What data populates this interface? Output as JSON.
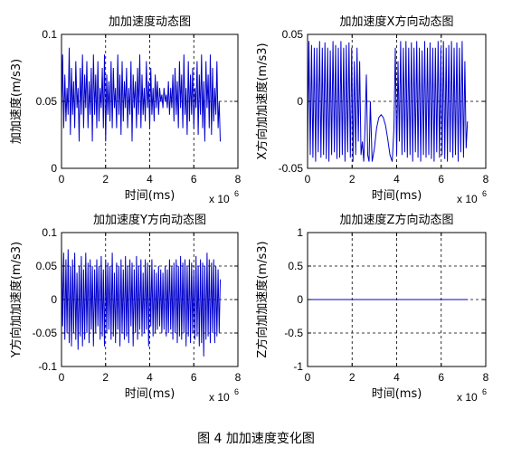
{
  "figure_caption": "图 4  加加速度变化图",
  "chart_data": [
    {
      "id": "total",
      "type": "line",
      "title": "加加速度动态图",
      "xlabel": "时间(ms)",
      "ylabel": "加加速度(m/s3)",
      "x_exponent_base": "x 10",
      "x_exponent": "6",
      "xlim": [
        0,
        8
      ],
      "ylim": [
        0,
        0.1
      ],
      "xticks": [
        "0",
        "2",
        "4",
        "6",
        "8"
      ],
      "yticks": [
        "0",
        "0.05",
        "0.1"
      ],
      "grid": true,
      "line_color": "#0000cc",
      "series": [
        {
          "x": [
            0.0,
            0.05,
            0.1,
            0.15,
            0.2,
            0.25,
            0.3,
            0.35,
            0.4,
            0.45,
            0.5,
            0.55,
            0.6,
            0.65,
            0.7,
            0.75,
            0.8,
            0.85,
            0.9,
            0.95,
            1.0,
            1.05,
            1.1,
            1.15,
            1.2,
            1.25,
            1.3,
            1.35,
            1.4,
            1.45,
            1.5,
            1.55,
            1.6,
            1.65,
            1.7,
            1.75,
            1.8,
            1.85,
            1.9,
            1.95,
            2.0,
            2.05,
            2.1,
            2.15,
            2.2,
            2.25,
            2.3,
            2.35,
            2.4,
            2.45,
            2.5,
            2.55,
            2.6,
            2.65,
            2.7,
            2.75,
            2.8,
            2.85,
            2.9,
            2.95,
            3.0,
            3.05,
            3.1,
            3.15,
            3.2,
            3.25,
            3.3,
            3.35,
            3.4,
            3.45,
            3.5,
            3.55,
            3.6,
            3.65,
            3.7,
            3.75,
            3.8,
            3.85,
            3.9,
            3.95,
            4.0,
            4.05,
            4.1,
            4.15,
            4.2,
            4.25,
            4.3,
            4.35,
            4.4,
            4.45,
            4.5,
            4.55,
            4.6,
            4.65,
            4.7,
            4.75,
            4.8,
            4.85,
            4.9,
            4.95,
            5.0,
            5.05,
            5.1,
            5.15,
            5.2,
            5.25,
            5.3,
            5.35,
            5.4,
            5.45,
            5.5,
            5.55,
            5.6,
            5.65,
            5.7,
            5.75,
            5.8,
            5.85,
            5.9,
            5.95,
            6.0,
            6.05,
            6.1,
            6.15,
            6.2,
            6.25,
            6.3,
            6.35,
            6.4,
            6.45,
            6.5,
            6.55,
            6.6,
            6.65,
            6.7,
            6.75,
            6.8,
            6.85,
            6.9,
            6.95,
            7.0,
            7.05,
            7.1,
            7.15,
            7.2
          ],
          "y": [
            0.04,
            0.085,
            0.03,
            0.07,
            0.035,
            0.06,
            0.04,
            0.09,
            0.025,
            0.075,
            0.04,
            0.065,
            0.03,
            0.08,
            0.045,
            0.06,
            0.02,
            0.075,
            0.04,
            0.085,
            0.03,
            0.07,
            0.045,
            0.08,
            0.03,
            0.065,
            0.04,
            0.075,
            0.02,
            0.085,
            0.04,
            0.07,
            0.03,
            0.08,
            0.035,
            0.06,
            0.045,
            0.075,
            0.03,
            0.085,
            0.02,
            0.07,
            0.04,
            0.065,
            0.035,
            0.08,
            0.03,
            0.075,
            0.045,
            0.06,
            0.03,
            0.085,
            0.04,
            0.07,
            0.025,
            0.08,
            0.035,
            0.065,
            0.045,
            0.075,
            0.03,
            0.06,
            0.04,
            0.08,
            0.02,
            0.07,
            0.045,
            0.065,
            0.03,
            0.075,
            0.04,
            0.085,
            0.03,
            0.07,
            0.04,
            0.06,
            0.035,
            0.08,
            0.045,
            0.065,
            0.03,
            0.075,
            0.04,
            0.06,
            0.035,
            0.07,
            0.045,
            0.065,
            0.04,
            0.06,
            0.05,
            0.055,
            0.045,
            0.06,
            0.05,
            0.055,
            0.045,
            0.065,
            0.04,
            0.06,
            0.045,
            0.07,
            0.035,
            0.075,
            0.04,
            0.065,
            0.03,
            0.08,
            0.045,
            0.07,
            0.03,
            0.085,
            0.04,
            0.06,
            0.025,
            0.08,
            0.035,
            0.07,
            0.04,
            0.075,
            0.03,
            0.06,
            0.045,
            0.08,
            0.025,
            0.07,
            0.04,
            0.085,
            0.03,
            0.065,
            0.02,
            0.08,
            0.045,
            0.07,
            0.03,
            0.085,
            0.025,
            0.075,
            0.035,
            0.06,
            0.04,
            0.08,
            0.03,
            0.05,
            0.02
          ]
        }
      ]
    },
    {
      "id": "x",
      "type": "line",
      "title": "加加速度X方向动态图",
      "xlabel": "时间(ms)",
      "ylabel": "X方向加加速度(m/s3)",
      "x_exponent_base": "x 10",
      "x_exponent": "6",
      "xlim": [
        0,
        8
      ],
      "ylim": [
        -0.05,
        0.05
      ],
      "xticks": [
        "0",
        "2",
        "4",
        "6",
        "8"
      ],
      "yticks": [
        "-0.05",
        "0",
        "0.05"
      ],
      "grid": true,
      "line_color": "#0000cc",
      "series": [
        {
          "x": [
            0.0,
            0.06,
            0.12,
            0.18,
            0.24,
            0.3,
            0.36,
            0.42,
            0.48,
            0.54,
            0.6,
            0.66,
            0.72,
            0.78,
            0.84,
            0.9,
            0.96,
            1.02,
            1.08,
            1.14,
            1.2,
            1.26,
            1.32,
            1.38,
            1.44,
            1.5,
            1.56,
            1.62,
            1.68,
            1.74,
            1.8,
            1.86,
            1.92,
            1.98,
            2.04,
            2.1,
            2.16,
            2.22,
            2.28,
            2.34,
            2.4,
            2.46,
            2.52,
            2.58,
            2.64,
            2.7,
            2.76,
            2.82,
            2.9,
            3.0,
            3.1,
            3.2,
            3.3,
            3.4,
            3.5,
            3.6,
            3.7,
            3.8,
            3.88,
            3.94,
            4.0,
            4.06,
            4.12,
            4.18,
            4.24,
            4.3,
            4.36,
            4.42,
            4.48,
            4.54,
            4.6,
            4.66,
            4.72,
            4.78,
            4.84,
            4.9,
            4.96,
            5.02,
            5.08,
            5.14,
            5.2,
            5.26,
            5.32,
            5.38,
            5.44,
            5.5,
            5.56,
            5.62,
            5.68,
            5.74,
            5.8,
            5.86,
            5.92,
            5.98,
            6.04,
            6.1,
            6.16,
            6.22,
            6.28,
            6.34,
            6.4,
            6.46,
            6.52,
            6.58,
            6.64,
            6.7,
            6.76,
            6.82,
            6.88,
            6.94,
            7.0,
            7.06,
            7.12,
            7.18
          ],
          "y": [
            -0.04,
            0.045,
            -0.04,
            0.042,
            -0.042,
            0.04,
            -0.045,
            0.04,
            -0.038,
            0.045,
            -0.042,
            0.04,
            -0.04,
            0.044,
            -0.043,
            0.04,
            -0.045,
            0.038,
            -0.04,
            0.045,
            -0.038,
            0.042,
            -0.043,
            0.04,
            -0.042,
            0.045,
            -0.04,
            0.04,
            -0.045,
            0.042,
            -0.038,
            0.044,
            -0.042,
            0.04,
            -0.045,
            0.03,
            -0.04,
            0.04,
            -0.03,
            0.03,
            -0.04,
            -0.03,
            -0.045,
            -0.02,
            0.02,
            -0.04,
            -0.045,
            0.0,
            -0.045,
            -0.035,
            -0.02,
            -0.012,
            -0.01,
            -0.012,
            -0.018,
            -0.028,
            -0.04,
            -0.045,
            -0.02,
            0.04,
            -0.04,
            0.03,
            -0.03,
            0.045,
            -0.04,
            0.04,
            -0.038,
            0.045,
            -0.042,
            0.04,
            -0.04,
            0.044,
            -0.045,
            0.04,
            -0.038,
            0.045,
            -0.042,
            0.04,
            -0.045,
            0.038,
            -0.04,
            0.045,
            -0.042,
            0.04,
            -0.04,
            0.044,
            -0.043,
            0.04,
            -0.045,
            0.04,
            -0.038,
            0.045,
            -0.042,
            0.04,
            -0.04,
            0.045,
            -0.043,
            0.04,
            -0.045,
            0.042,
            -0.038,
            0.045,
            -0.042,
            0.04,
            -0.04,
            0.044,
            -0.045,
            0.04,
            -0.038,
            0.045,
            -0.042,
            0.03,
            -0.035,
            -0.015
          ]
        }
      ]
    },
    {
      "id": "y",
      "type": "line",
      "title": "加加速度Y方向动态图",
      "xlabel": "时间(ms)",
      "ylabel": "Y方向加加速度(m/s3)",
      "x_exponent_base": "x 10",
      "x_exponent": "6",
      "xlim": [
        0,
        8
      ],
      "ylim": [
        -0.1,
        0.1
      ],
      "xticks": [
        "0",
        "2",
        "4",
        "6",
        "8"
      ],
      "yticks": [
        "-0.1",
        "-0.05",
        "0",
        "0.05",
        "0.1"
      ],
      "grid": true,
      "line_color": "#0000cc",
      "series": [
        {
          "x": [
            0.0,
            0.05,
            0.1,
            0.15,
            0.2,
            0.25,
            0.3,
            0.35,
            0.4,
            0.45,
            0.5,
            0.55,
            0.6,
            0.65,
            0.7,
            0.75,
            0.8,
            0.85,
            0.9,
            0.95,
            1.0,
            1.05,
            1.1,
            1.15,
            1.2,
            1.25,
            1.3,
            1.35,
            1.4,
            1.45,
            1.5,
            1.55,
            1.6,
            1.65,
            1.7,
            1.75,
            1.8,
            1.85,
            1.9,
            1.95,
            2.0,
            2.05,
            2.1,
            2.15,
            2.2,
            2.25,
            2.3,
            2.35,
            2.4,
            2.45,
            2.5,
            2.55,
            2.6,
            2.65,
            2.7,
            2.75,
            2.8,
            2.85,
            2.9,
            2.95,
            3.0,
            3.05,
            3.1,
            3.15,
            3.2,
            3.25,
            3.3,
            3.35,
            3.4,
            3.45,
            3.5,
            3.55,
            3.6,
            3.65,
            3.7,
            3.75,
            3.8,
            3.85,
            3.9,
            3.95,
            4.0,
            4.05,
            4.1,
            4.15,
            4.2,
            4.25,
            4.3,
            4.35,
            4.4,
            4.45,
            4.5,
            4.55,
            4.6,
            4.65,
            4.7,
            4.75,
            4.8,
            4.85,
            4.9,
            4.95,
            5.0,
            5.05,
            5.1,
            5.15,
            5.2,
            5.25,
            5.3,
            5.35,
            5.4,
            5.45,
            5.5,
            5.55,
            5.6,
            5.65,
            5.7,
            5.75,
            5.8,
            5.85,
            5.9,
            5.95,
            6.0,
            6.05,
            6.1,
            6.15,
            6.2,
            6.25,
            6.3,
            6.35,
            6.4,
            6.45,
            6.5,
            6.55,
            6.6,
            6.65,
            6.7,
            6.75,
            6.8,
            6.85,
            6.9,
            6.95,
            7.0,
            7.05,
            7.1,
            7.15,
            7.2
          ],
          "y": [
            0.08,
            -0.04,
            0.07,
            -0.06,
            0.06,
            -0.05,
            0.075,
            -0.065,
            0.05,
            -0.07,
            0.06,
            -0.05,
            0.07,
            -0.06,
            0.04,
            -0.075,
            0.05,
            -0.055,
            0.065,
            -0.07,
            0.045,
            -0.06,
            0.07,
            -0.05,
            0.055,
            -0.065,
            0.06,
            -0.045,
            0.05,
            -0.07,
            0.045,
            -0.05,
            0.06,
            -0.04,
            0.05,
            -0.06,
            0.065,
            -0.055,
            0.045,
            -0.07,
            0.06,
            -0.05,
            0.055,
            -0.045,
            0.05,
            -0.06,
            0.07,
            -0.055,
            0.04,
            -0.065,
            0.055,
            -0.045,
            0.05,
            -0.07,
            0.06,
            -0.05,
            0.045,
            -0.06,
            0.065,
            -0.055,
            0.05,
            -0.065,
            0.06,
            -0.04,
            0.055,
            -0.07,
            0.045,
            -0.05,
            0.065,
            -0.06,
            0.05,
            -0.045,
            0.06,
            -0.055,
            0.04,
            -0.05,
            0.06,
            -0.045,
            0.055,
            -0.07,
            0.05,
            -0.04,
            0.06,
            -0.055,
            0.045,
            -0.05,
            0.04,
            -0.045,
            0.05,
            -0.04,
            0.045,
            -0.05,
            0.04,
            -0.045,
            0.05,
            -0.055,
            0.045,
            -0.05,
            0.06,
            -0.045,
            0.05,
            -0.06,
            0.055,
            -0.05,
            0.06,
            -0.065,
            0.05,
            -0.055,
            0.065,
            -0.06,
            0.055,
            -0.05,
            0.06,
            -0.07,
            0.05,
            -0.055,
            0.06,
            -0.065,
            0.055,
            -0.05,
            0.045,
            -0.06,
            0.065,
            -0.055,
            0.05,
            -0.07,
            0.06,
            -0.065,
            0.055,
            -0.085,
            0.05,
            -0.06,
            0.07,
            -0.055,
            0.06,
            -0.065,
            0.055,
            -0.05,
            0.06,
            -0.065,
            0.05,
            -0.055,
            0.045,
            -0.05,
            0.03
          ]
        }
      ]
    },
    {
      "id": "z",
      "type": "line",
      "title": "加加速度Z方向动态图",
      "xlabel": "时间(ms)",
      "ylabel": "Z方向加加速度(m/s3)",
      "x_exponent_base": "x 10",
      "x_exponent": "6",
      "xlim": [
        0,
        8
      ],
      "ylim": [
        -1,
        1
      ],
      "xticks": [
        "0",
        "2",
        "4",
        "6",
        "8"
      ],
      "yticks": [
        "-1",
        "-0.5",
        "0",
        "0.5",
        "1"
      ],
      "grid": true,
      "line_color": "#0000cc",
      "series": [
        {
          "x": [
            0,
            7.2
          ],
          "y": [
            0,
            0
          ]
        }
      ]
    }
  ]
}
